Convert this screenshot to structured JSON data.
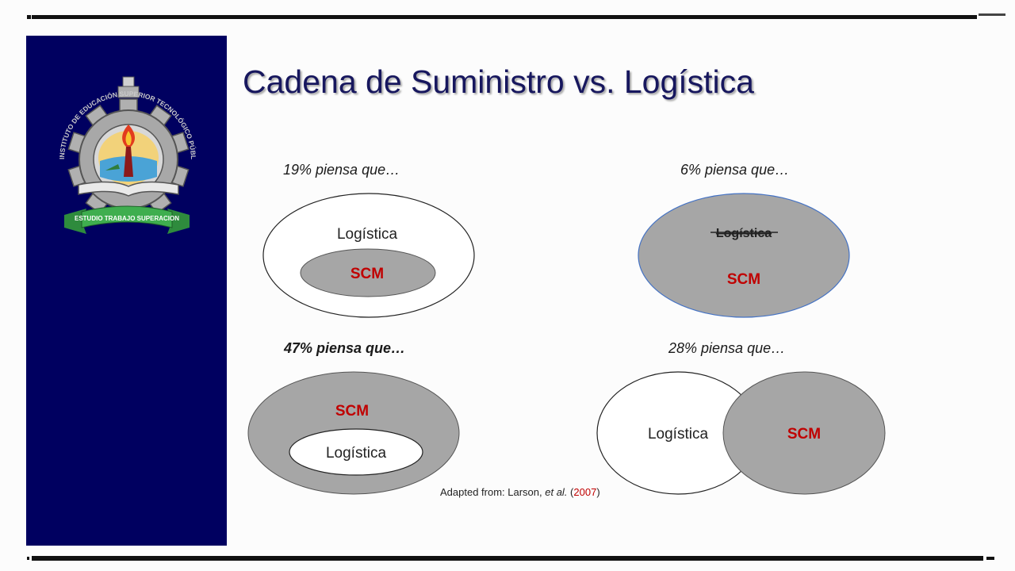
{
  "slide": {
    "title": "Cadena de Suministro vs. Logística",
    "emblem": {
      "icon": "institute-gear-torch-emblem-icon",
      "ribbon_text": "ESTUDIO TRABAJO SUPERACION",
      "ring_text": "INSTITUTO DE EDUCACIÓN SUPERIOR TECNOLÓGICO PÚBLICO"
    }
  },
  "panels": [
    {
      "label": "19% piensa que…",
      "outer_text": "Logística",
      "inner_text": "SCM"
    },
    {
      "label": "6% piensa que…",
      "struck_text": "Logística",
      "main_text": "SCM"
    },
    {
      "label": "47% piensa que…",
      "outer_text": "SCM",
      "inner_text": "Logística"
    },
    {
      "label": "28% piensa que…",
      "left_text": "Logística",
      "right_text": "SCM"
    }
  ],
  "source": {
    "prefix": "Adapted from: Larson, ",
    "etal": "et al.",
    "open": " (",
    "year": "2007",
    "close": ")"
  },
  "colors": {
    "sidebar": "#000060",
    "title": "#17175e",
    "scm_fill": "#a6a6a6",
    "scm_text": "#c00000",
    "outline": "#222222",
    "blue_outline": "#4472c4"
  }
}
